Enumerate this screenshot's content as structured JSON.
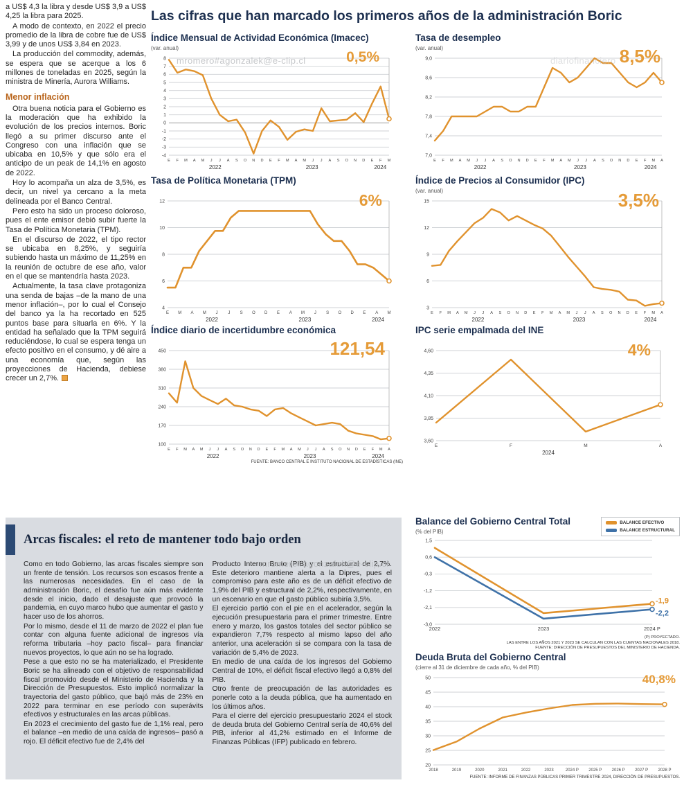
{
  "main_title": "Las cifras que han marcado los primeros años de la administración Boric",
  "watermarks": {
    "center_top": "mromero#agonzalek@e-clip.cl",
    "top_right": "diariofinanciero",
    "bottom": "mromero#agonzalek@e-clip.cl"
  },
  "colors": {
    "accent_orange": "#E0922D",
    "series_blue": "#3F72A8",
    "navy_title": "#1d3050",
    "box_gray": "#d9dce1",
    "box_bar_blue": "#2C4A74",
    "subhead_orange": "#b9651c"
  },
  "left_column": {
    "paragraphs_top": [
      "a US$ 4,3 la libra y desde US$ 3,9 a US$ 4,25 la libra para 2025.",
      "A modo de contexto, en 2022 el precio promedio de la libra de cobre fue de US$ 3,99 y de unos US$ 3,84 en 2023.",
      "La producción del commodity, además, se espera que se acerque a los 6 millones de toneladas en 2025, según la ministra de Minería, Aurora Williams."
    ],
    "subhead": "Menor inflación",
    "paragraphs_bottom": [
      "Otra buena noticia para el Gobierno es la moderación que ha exhibido la evolución de los precios internos. Boric llegó a su primer discurso ante el Congreso con una inflación que se ubicaba en 10,5% y que sólo era el anticipo de un peak de 14,1% en agosto de 2022.",
      "Hoy lo acompaña un alza de 3,5%, es decir, un nivel ya cercano a la meta delineada por el Banco Central.",
      "Pero esto ha sido un proceso doloroso, pues el ente emisor debió subir fuerte la Tasa de Política Monetaria (TPM).",
      "En el discurso de 2022, el tipo rector se ubicaba en 8,25%, y seguiría subiendo hasta un máximo de 11,25% en la reunión de octubre de ese año, valor en el que se mantendría hasta 2023.",
      "Actualmente, la tasa clave protagoniza una senda de bajas –de la mano de una menor inflación–, por lo cual el Consejo del banco ya la ha recortado en 525 puntos base para situarla en 6%. Y la entidad ha señalado que la TPM seguirá reduciéndose, lo cual se espera tenga un efecto positivo en el consumo, y dé aire a una economía que, según las proyecciones de Hacienda, debiese crecer un 2,7%."
    ]
  },
  "fiscal_box": {
    "title": "Arcas fiscales: el reto de mantener todo bajo orden",
    "col1": [
      "Como en todo Gobierno, las arcas fiscales siempre son un frente de tensión. Los recursos son escasos frente a las numerosas necesidades. En el caso de la administración Boric, el desafío fue aún más evidente desde el inicio, dado el desajuste que provocó la pandemia, en cuyo marco hubo que aumentar el gasto y hacer uso de los ahorros.",
      "Por lo mismo, desde el 11 de marzo de 2022 el plan fue contar con alguna fuente adicional de ingresos vía reforma tributaria –hoy pacto fiscal– para financiar nuevos proyectos, lo que aún no se ha logrado.",
      "Pese a que esto no se ha materializado, el Presidente Boric se ha alineado con el objetivo de responsabilidad fiscal promovido desde el Ministerio de Hacienda y la Dirección de Presupuestos. Esto implicó normalizar la trayectoria del gasto público, que bajó más de 23% en 2022 para terminar en ese período con superávits efectivos y estructurales en las arcas públicas.",
      "En 2023 el crecimiento del gasto fue de 1,1% real, pero el balance –en medio de una caída de ingresos– pasó a rojo. El déficit efectivo fue de 2,4% del"
    ],
    "col2": [
      "Producto Interno Bruto (PIB) y el estructural de 2,7%. Este deterioro mantiene alerta a la Dipres, pues el compromiso para este año es de un déficit efectivo de 1,9% del PIB y estructural de 2,2%, respectivamente, en un escenario en que el gasto público subiría 3,5%.",
      "El ejercicio partió con el pie en el acelerador, según la ejecución presupuestaria para el primer trimestre. Entre enero y marzo, los gastos totales del sector público se expandieron 7,7% respecto al mismo lapso del año anterior, una aceleración si se compara con la tasa de variación de 5,4% de 2023.",
      "En medio de una caída de los ingresos del Gobierno Central de 10%, el déficit fiscal efectivo llegó a 0,8% del PIB.",
      "Otro frente de preocupación de las autoridades es ponerle coto a la deuda pública, que ha aumentado en los últimos años.",
      "Para el cierre del ejercicio presupuestario 2024 el stock de deuda bruta del Gobierno Central sería de 40,6% del PIB, inferior al 41,2% estimado en el Informe de Finanzas Públicas (IFP) publicado en febrero."
    ]
  },
  "chart_data": [
    {
      "type": "line",
      "title": "Índice Mensual de Actividad Económica (Imacec)",
      "subtitle": "(var. anual)",
      "big_label": "0,5%",
      "ylim": [
        -4,
        8
      ],
      "y_tick_values": [
        8,
        7,
        6,
        5,
        4,
        3,
        2,
        1,
        0,
        -1,
        -2,
        -3,
        -4
      ],
      "y_tick_labels": [
        "8",
        "7",
        "6",
        "5",
        "4",
        "3",
        "2",
        "1",
        "0",
        "-1",
        "-2",
        "-3",
        "-4"
      ],
      "x_ticks": [
        "E",
        "F",
        "M",
        "A",
        "M",
        "J",
        "J",
        "A",
        "S",
        "O",
        "N",
        "D",
        "E",
        "F",
        "M",
        "A",
        "M",
        "J",
        "J",
        "A",
        "S",
        "O",
        "N",
        "D",
        "E",
        "F",
        "M"
      ],
      "year_labels": [
        "2022",
        "2023",
        "2024"
      ],
      "year_fracs": [
        0.21,
        0.65,
        0.96
      ],
      "x_font": 5.6,
      "m": {
        "l": 26,
        "r": 20,
        "t": 8,
        "b": 22
      },
      "series": [
        {
          "name": "Imacec var. anual",
          "color": "#E0922D",
          "width": 2.4,
          "marker_line": true,
          "end_marker": true,
          "values": [
            7.8,
            6.2,
            6.6,
            6.4,
            5.9,
            3.0,
            1.0,
            0.2,
            0.4,
            -1.2,
            -3.8,
            -1.0,
            0.3,
            -0.5,
            -2.1,
            -1.1,
            -0.8,
            -1.0,
            1.8,
            0.2,
            0.3,
            0.4,
            1.2,
            0.1,
            2.4,
            4.5,
            0.5
          ]
        }
      ]
    },
    {
      "type": "line",
      "title": "Tasa de desempleo",
      "subtitle": "(var. anual)",
      "big_label": "8,5%",
      "ylim": [
        7.0,
        9.0
      ],
      "y_tick_values": [
        9.0,
        8.6,
        8.2,
        7.8,
        7.4,
        7.0
      ],
      "y_tick_labels": [
        "9,0",
        "8,6",
        "8,2",
        "7,8",
        "7,4",
        "7,0"
      ],
      "x_ticks": [
        "E",
        "F",
        "M",
        "A",
        "M",
        "J",
        "J",
        "A",
        "S",
        "O",
        "N",
        "D",
        "E",
        "F",
        "M",
        "A",
        "M",
        "J",
        "J",
        "A",
        "S",
        "O",
        "N",
        "D",
        "E",
        "F",
        "M",
        "A"
      ],
      "year_labels": [
        "2022",
        "2023",
        "2024"
      ],
      "year_fracs": [
        0.2,
        0.64,
        0.95
      ],
      "x_font": 5.6,
      "m": {
        "l": 28,
        "r": 20,
        "t": 8,
        "b": 22
      },
      "series": [
        {
          "name": "Tasa de desempleo",
          "color": "#E0922D",
          "width": 2.4,
          "marker_line": true,
          "end_marker": true,
          "values": [
            7.3,
            7.5,
            7.8,
            7.8,
            7.8,
            7.8,
            7.9,
            8.0,
            8.0,
            7.9,
            7.9,
            8.0,
            8.0,
            8.4,
            8.8,
            8.7,
            8.5,
            8.6,
            8.8,
            9.0,
            8.9,
            8.9,
            8.7,
            8.5,
            8.4,
            8.5,
            8.7,
            8.5
          ]
        }
      ]
    },
    {
      "type": "line",
      "title": "Tasa de Política Monetaria (TPM)",
      "big_label": "6%",
      "ylim": [
        4,
        12
      ],
      "y_tick_values": [
        12,
        10,
        8,
        6,
        4
      ],
      "y_tick_labels": [
        "12",
        "10",
        "8",
        "6",
        "4"
      ],
      "x_ticks": [
        "E",
        "M",
        "A",
        "M",
        "J",
        "J",
        "S",
        "O",
        "D",
        "E",
        "A",
        "M",
        "J",
        "S",
        "O",
        "D",
        "E",
        "A",
        "M"
      ],
      "year_labels": [
        "2022",
        "2023",
        "2024"
      ],
      "year_fracs": [
        0.2,
        0.62,
        0.95
      ],
      "x_font": 6,
      "m": {
        "l": 24,
        "r": 20,
        "t": 8,
        "b": 22
      },
      "series": [
        {
          "name": "TPM",
          "color": "#E0922D",
          "width": 2.6,
          "marker_line": true,
          "end_marker": true,
          "values": [
            5.5,
            5.5,
            7.0,
            7.0,
            8.25,
            9.0,
            9.75,
            9.75,
            10.75,
            11.25,
            11.25,
            11.25,
            11.25,
            11.25,
            11.25,
            11.25,
            11.25,
            11.25,
            11.25,
            10.25,
            9.5,
            9.0,
            9.0,
            8.25,
            7.25,
            7.25,
            7.0,
            6.5,
            6.0
          ]
        }
      ]
    },
    {
      "type": "line",
      "title": "Índice de Precios al Consumidor (IPC)",
      "subtitle": "(var. anual)",
      "big_label": "3,5%",
      "ylim": [
        3,
        15
      ],
      "y_tick_values": [
        15,
        12,
        9,
        6,
        3
      ],
      "y_tick_labels": [
        "15",
        "12",
        "9",
        "6",
        "3"
      ],
      "x_ticks": [
        "E",
        "F",
        "M",
        "A",
        "M",
        "J",
        "J",
        "A",
        "S",
        "O",
        "N",
        "D",
        "E",
        "F",
        "M",
        "A",
        "M",
        "J",
        "J",
        "A",
        "S",
        "O",
        "N",
        "D",
        "E",
        "F",
        "M",
        "A"
      ],
      "year_labels": [
        "2022",
        "2023",
        "2024"
      ],
      "year_fracs": [
        0.2,
        0.64,
        0.95
      ],
      "x_font": 5.6,
      "m": {
        "l": 24,
        "r": 20,
        "t": 8,
        "b": 22
      },
      "series": [
        {
          "name": "IPC var. anual",
          "color": "#E0922D",
          "width": 2.4,
          "marker_line": true,
          "end_marker": true,
          "values": [
            7.7,
            7.8,
            9.4,
            10.5,
            11.5,
            12.5,
            13.1,
            14.1,
            13.7,
            12.8,
            13.3,
            12.8,
            12.3,
            11.9,
            11.1,
            9.9,
            8.7,
            7.6,
            6.5,
            5.3,
            5.1,
            5.0,
            4.8,
            3.9,
            3.8,
            3.2,
            3.4,
            3.5
          ]
        }
      ]
    },
    {
      "type": "line",
      "title": "Índice diario de incertidumbre económica",
      "big_label": "121,54",
      "ylim": [
        100,
        450
      ],
      "y_tick_values": [
        450,
        380,
        310,
        240,
        170,
        100
      ],
      "y_tick_labels": [
        "450",
        "380",
        "310",
        "240",
        "170",
        "100"
      ],
      "x_ticks": [
        "E",
        "F",
        "M",
        "A",
        "M",
        "J",
        "J",
        "A",
        "S",
        "O",
        "N",
        "D",
        "E",
        "F",
        "M",
        "A",
        "M",
        "J",
        "J",
        "A",
        "S",
        "O",
        "N",
        "D",
        "E",
        "F",
        "M",
        "A"
      ],
      "year_labels": [
        "2022",
        "2023",
        "2024"
      ],
      "year_fracs": [
        0.2,
        0.64,
        0.95
      ],
      "x_font": 5.6,
      "m": {
        "l": 26,
        "r": 20,
        "t": 8,
        "b": 22
      },
      "source": "FUENTE: BANCO CENTRAL E INSTITUTO NACIONAL DE ESTADÍSTICAS (INE)",
      "series": [
        {
          "name": "Incertidumbre económica",
          "color": "#E0922D",
          "width": 2.4,
          "marker_line": true,
          "end_marker": true,
          "values": [
            290,
            255,
            410,
            310,
            280,
            265,
            250,
            270,
            245,
            240,
            230,
            225,
            205,
            230,
            235,
            215,
            200,
            185,
            170,
            175,
            180,
            175,
            150,
            140,
            135,
            130,
            118,
            121.54
          ]
        }
      ]
    },
    {
      "type": "line",
      "title": "IPC serie empalmada del INE",
      "big_label": "4%",
      "ylim": [
        3.6,
        4.6
      ],
      "y_tick_values": [
        4.6,
        4.35,
        4.1,
        3.85,
        3.6
      ],
      "y_tick_labels": [
        "4,60",
        "4,35",
        "4,10",
        "3,85",
        "3,60"
      ],
      "x_ticks": [
        "E",
        "F",
        "M",
        "A"
      ],
      "year_labels": [
        "2024"
      ],
      "year_fracs": [
        0.5
      ],
      "x_font": 6.5,
      "m": {
        "l": 30,
        "r": 22,
        "t": 8,
        "b": 22
      },
      "series": [
        {
          "name": "IPC serie empalmada",
          "color": "#E0922D",
          "width": 2.4,
          "marker_line": true,
          "end_marker": true,
          "values": [
            3.8,
            4.5,
            3.7,
            4.0
          ]
        }
      ]
    },
    {
      "type": "line",
      "title": "Balance del Gobierno Central Total",
      "subtitle": "(% del PIB)",
      "ylim": [
        -3.0,
        1.5
      ],
      "y_tick_values": [
        1.5,
        0.6,
        -0.3,
        -1.2,
        -2.1,
        -3.0
      ],
      "y_tick_labels": [
        "1,5",
        "0,6",
        "-0,3",
        "-1,2",
        "-2,1",
        "-3,0"
      ],
      "x_ticks": [
        "2022",
        "2023",
        "2024 P"
      ],
      "x_font": 7.5,
      "m": {
        "l": 28,
        "r": 40,
        "t": 6,
        "b": 14
      },
      "legend": [
        {
          "label": "BALANCE EFECTIVO",
          "color": "#E0922D"
        },
        {
          "label": "BALANCE ESTRUCTURAL",
          "color": "#3F72A8"
        }
      ],
      "footnotes": [
        "(P) PROYECTADO.",
        "LAS ENTRE LOS AÑOS 2021 Y 2023 SE CALCULAN  CON LAS CUENTAS NACIONALES 2018.",
        "FUENTE: DIRECCIÓN DE PRESUPUESTOS DEL MINISTERIO DE HACIENDA."
      ],
      "series": [
        {
          "name": "Balance efectivo",
          "color": "#E0922D",
          "width": 2.6,
          "end_marker": true,
          "end_label": "-1,9",
          "end_dy": -1,
          "values": [
            1.1,
            -2.4,
            -1.9
          ]
        },
        {
          "name": "Balance estructural",
          "color": "#3F72A8",
          "width": 2.6,
          "end_marker": true,
          "end_label": "-2,2",
          "end_dy": 9,
          "values": [
            0.6,
            -2.7,
            -2.2
          ]
        }
      ]
    },
    {
      "type": "line",
      "title": "Deuda Bruta del Gobierno Central",
      "subtitle": "(cierre al 31 de diciembre de cada año, % del PIB)",
      "big_label": "40,8%",
      "ylim": [
        20,
        50
      ],
      "y_tick_values": [
        50,
        45,
        40,
        35,
        30,
        25,
        20
      ],
      "y_tick_labels": [
        "50",
        "45",
        "40",
        "35",
        "30",
        "25",
        "20"
      ],
      "x_ticks": [
        "2018",
        "2019",
        "2020",
        "2021",
        "2022",
        "2023",
        "2024 P",
        "2025 P",
        "2026 P",
        "2027 P",
        "2028 P"
      ],
      "x_font": 6,
      "m": {
        "l": 26,
        "r": 22,
        "t": 8,
        "b": 14
      },
      "source": "FUENTE: INFORME DE FINANZAS PÚBLICAS PRIMER TRIMESTRE 2024, DIRECCIÓN DE PRESUPUESTOS.",
      "series": [
        {
          "name": "Deuda bruta % PIB",
          "color": "#E0922D",
          "width": 2.4,
          "end_marker": true,
          "values": [
            25.1,
            28.0,
            32.5,
            36.3,
            38.0,
            39.4,
            40.6,
            41.0,
            41.1,
            40.9,
            40.8
          ]
        }
      ]
    }
  ]
}
